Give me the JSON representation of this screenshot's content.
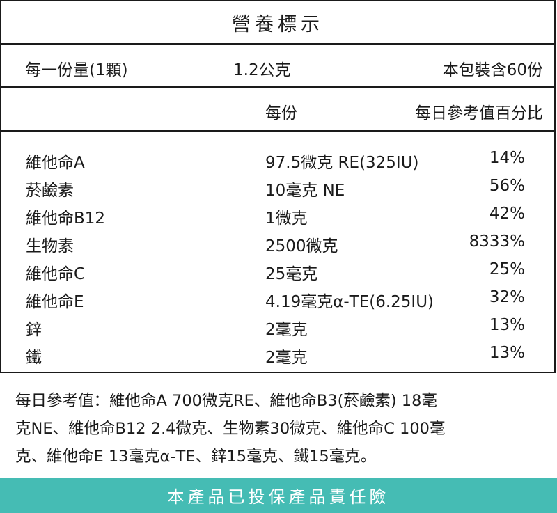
{
  "title": "營養標示",
  "serving": {
    "size_label": "每一份量(1顆)",
    "size_value": "1.2公克",
    "servings": "本包裝含60份"
  },
  "columns": {
    "per_serving": "每份",
    "daily_value": "每日參考值百分比"
  },
  "nutrients": [
    {
      "name": "維他命A",
      "amount": "97.5微克 RE(325IU)",
      "pct": "14%"
    },
    {
      "name": "菸鹼素",
      "amount": "10毫克 NE",
      "pct": "56%"
    },
    {
      "name": "維他命B12",
      "amount": "1微克",
      "pct": "42%"
    },
    {
      "name": "生物素",
      "amount": "2500微克",
      "pct": "8333%"
    },
    {
      "name": "維他命C",
      "amount": "25毫克",
      "pct": "25%"
    },
    {
      "name": "維他命E",
      "amount": "4.19毫克α-TE(6.25IU)",
      "pct": "32%"
    },
    {
      "name": "鋅",
      "amount": "2毫克",
      "pct": "13%"
    },
    {
      "name": "鐵",
      "amount": "2毫克",
      "pct": "13%"
    }
  ],
  "note_lines": [
    "每日參考值：維他命A 700微克RE、維他命B3(菸鹼素) 18毫",
    "克NE、維他命B12 2.4微克、生物素30微克、維他命C 100毫",
    "克、維他命E 13毫克α-TE、鋅15毫克、鐵15毫克。"
  ],
  "banner": "本產品已投保產品責任險"
}
